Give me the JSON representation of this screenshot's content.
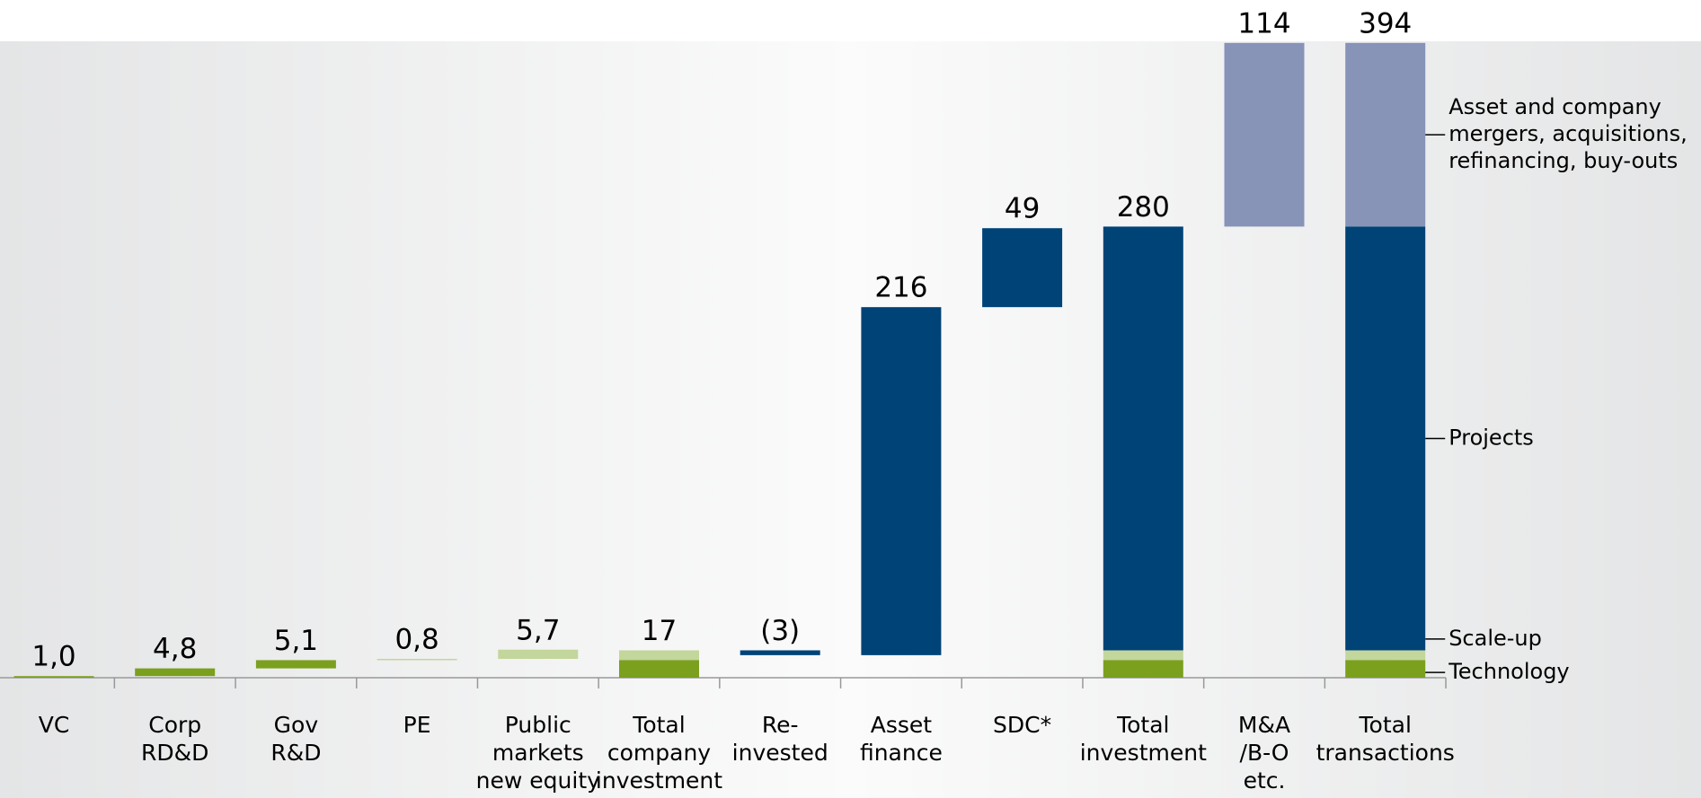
{
  "chart_data": {
    "type": "waterfall",
    "categories": [
      [
        "VC"
      ],
      [
        "Corp",
        "RD&D"
      ],
      [
        "Gov",
        "R&D"
      ],
      [
        "PE"
      ],
      [
        "Public",
        "markets",
        "new equity"
      ],
      [
        "Total",
        "company",
        "investment"
      ],
      [
        "Re-",
        "invested"
      ],
      [
        "Asset",
        "finance"
      ],
      [
        "SDC*"
      ],
      [
        "Total",
        "investment"
      ],
      [
        "M&A",
        "/B-O",
        "etc."
      ],
      [
        "Total",
        "transactions"
      ]
    ],
    "values": [
      1.0,
      4.8,
      5.1,
      0.8,
      5.7,
      17,
      -3,
      216,
      49,
      280,
      114,
      394
    ],
    "value_labels": [
      "1,0",
      "4,8",
      "5,1",
      "0,8",
      "5,7",
      "17",
      "(3)",
      "216",
      "49",
      "280",
      "114",
      "394"
    ],
    "colors": [
      "#7aa01e",
      "#7aa01e",
      "#7aa01e",
      "#c3d69b",
      "#c3d69b",
      null,
      "#004377",
      "#004377",
      "#004377",
      null,
      "#8793b7",
      null
    ],
    "totals": [
      5,
      9,
      11
    ],
    "series": [
      {
        "name": [
          "Technology"
        ],
        "color": "#7aa01e",
        "values": [
          null,
          null,
          null,
          null,
          null,
          11,
          null,
          null,
          null,
          11,
          null,
          11
        ]
      },
      {
        "name": [
          "Scale-up"
        ],
        "color": "#c3d69b",
        "values": [
          null,
          null,
          null,
          null,
          null,
          6,
          null,
          null,
          null,
          6,
          null,
          6
        ]
      },
      {
        "name": [
          "Projects"
        ],
        "color": "#004377",
        "values": [
          null,
          null,
          null,
          null,
          null,
          null,
          null,
          null,
          null,
          263,
          null,
          263
        ]
      },
      {
        "name": [
          "Asset and company",
          "mergers, acquisitions,",
          "refinancing, buy-outs"
        ],
        "color": "#8793b7",
        "values": [
          null,
          null,
          null,
          null,
          null,
          null,
          null,
          null,
          null,
          null,
          null,
          114
        ]
      }
    ],
    "ylim": [
      0,
      395
    ]
  }
}
